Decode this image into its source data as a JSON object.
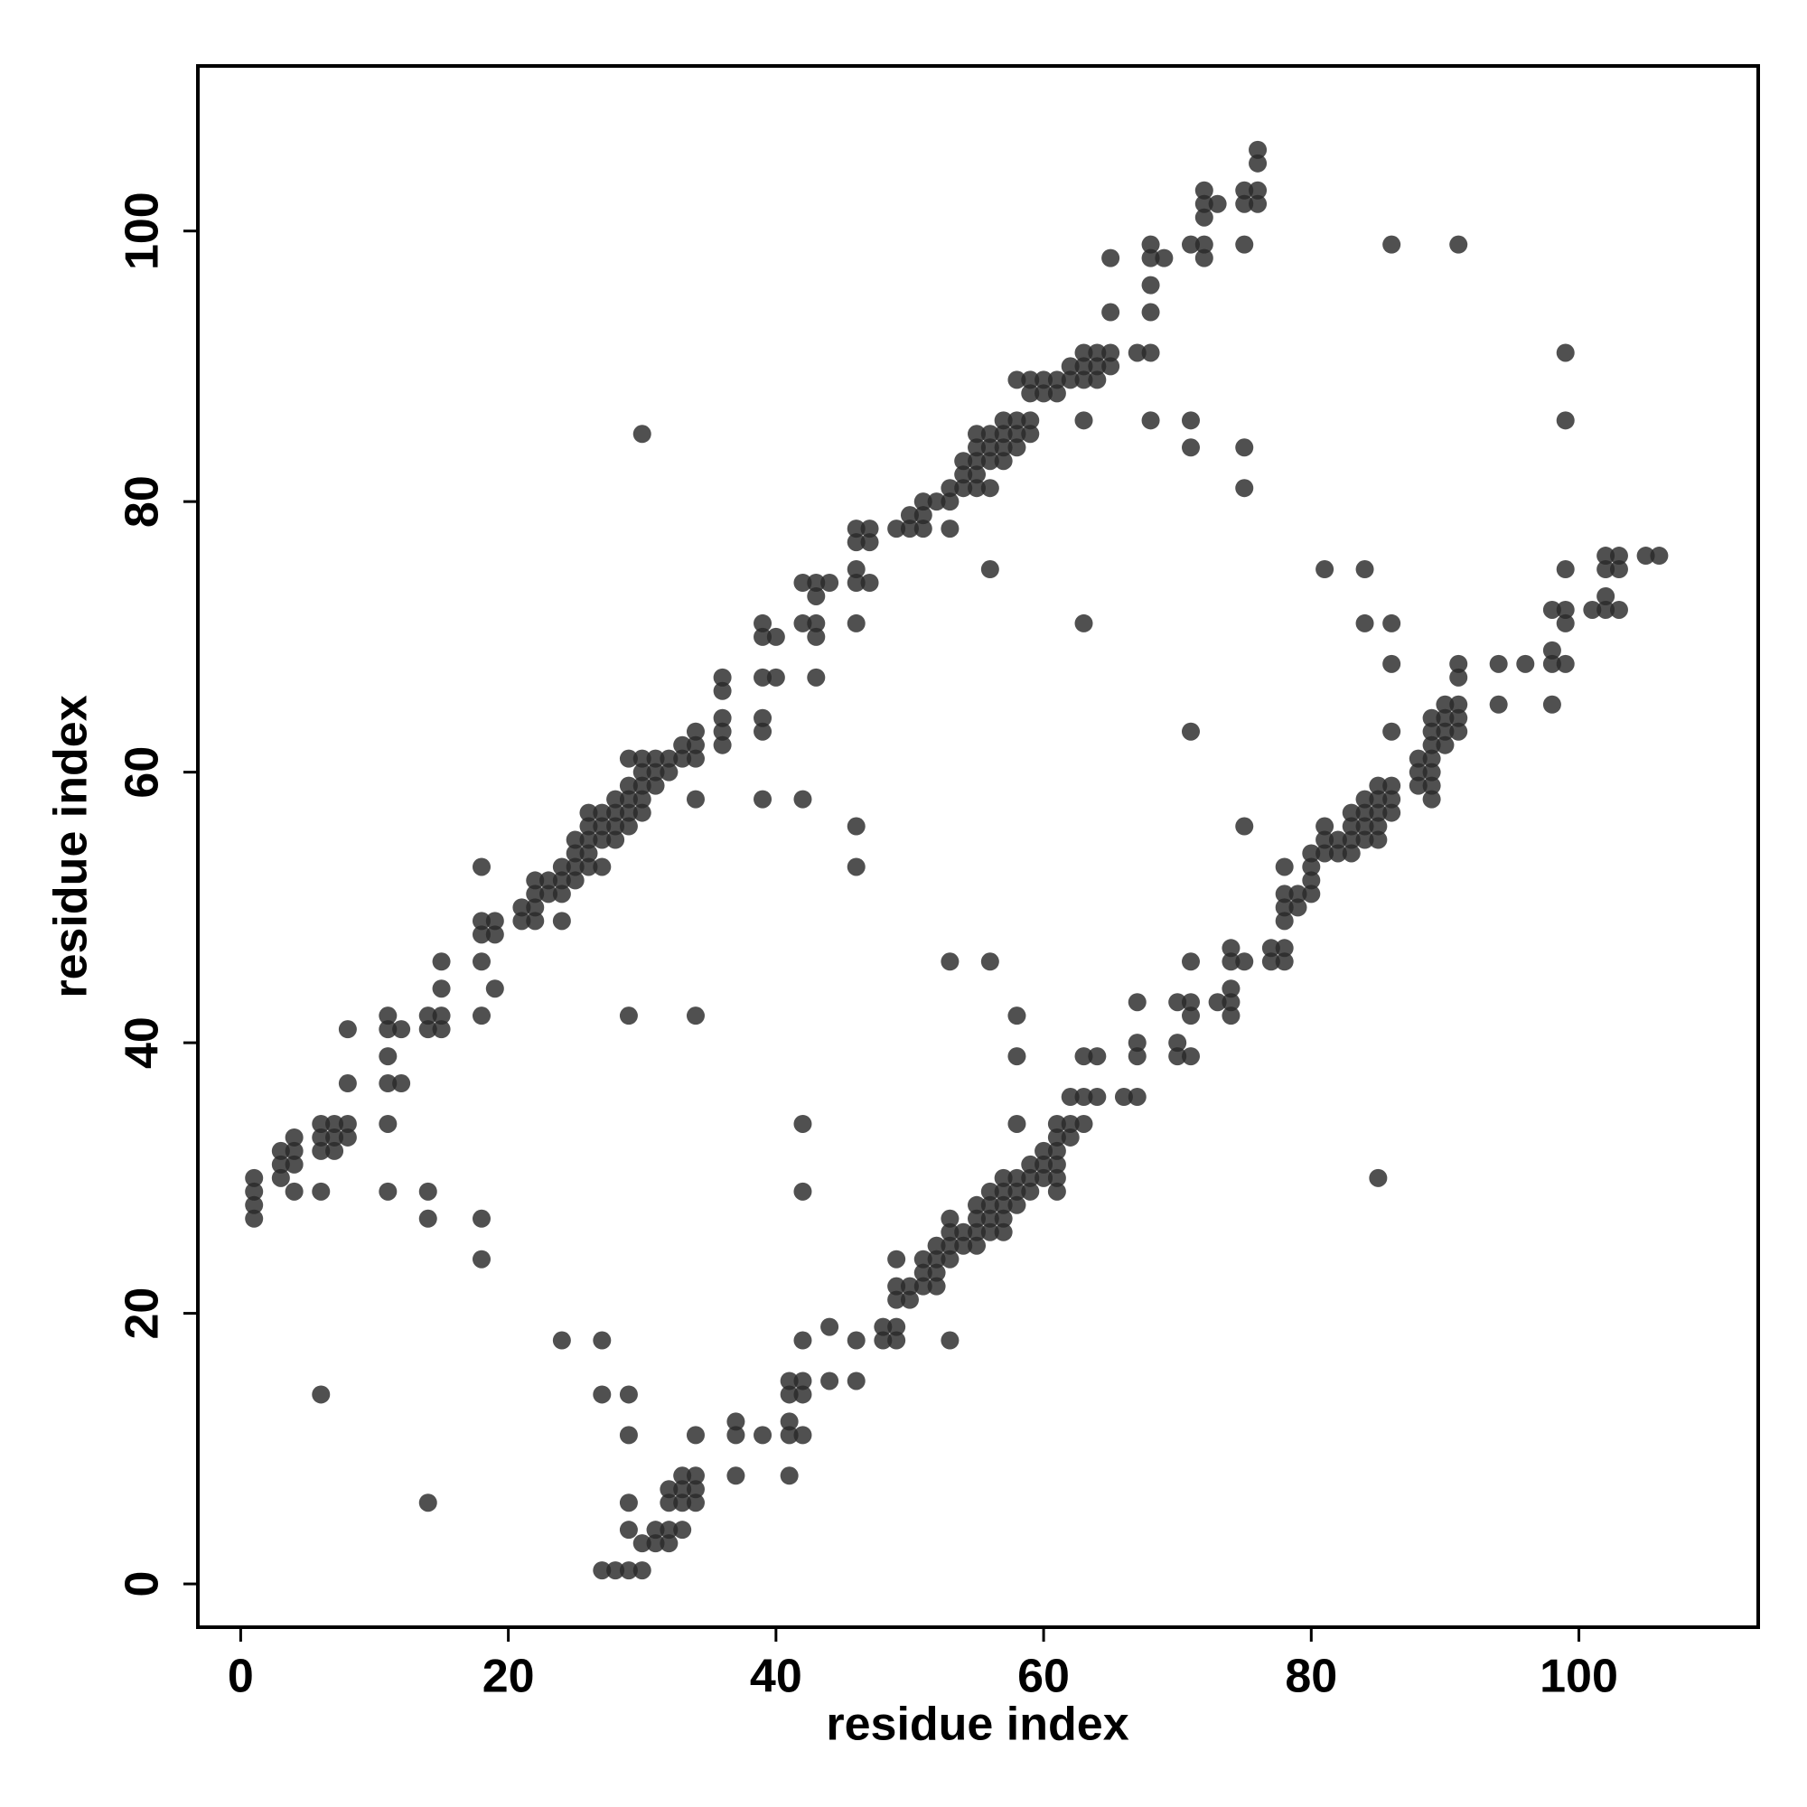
{
  "chart_data": {
    "type": "scatter",
    "xlabel": "residue index",
    "ylabel": "residue index",
    "xlim": [
      -3.2,
      113.4
    ],
    "ylim": [
      -3.2,
      112.2
    ],
    "xticks": [
      0,
      20,
      40,
      60,
      80,
      100
    ],
    "yticks": [
      0,
      20,
      40,
      60,
      80,
      100
    ],
    "grid": false,
    "x": [
      1,
      1,
      1,
      1,
      3,
      3,
      3,
      4,
      4,
      4,
      4,
      6,
      6,
      6,
      6,
      7,
      7,
      7,
      8,
      8,
      8,
      8,
      6,
      11,
      11,
      11,
      11,
      11,
      11,
      12,
      12,
      14,
      14,
      14,
      14,
      14,
      15,
      15,
      15,
      15,
      18,
      18,
      18,
      18,
      18,
      18,
      18,
      19,
      19,
      19,
      21,
      21,
      22,
      22,
      22,
      22,
      23,
      23,
      24,
      24,
      24,
      24,
      24,
      25,
      25,
      25,
      25,
      26,
      26,
      26,
      26,
      26,
      27,
      27,
      27,
      27,
      27,
      27,
      28,
      28,
      28,
      28,
      29,
      29,
      29,
      29,
      29,
      29,
      29,
      29,
      30,
      30,
      30,
      30,
      30,
      30,
      31,
      31,
      31,
      32,
      32,
      33,
      33,
      34,
      34,
      34,
      34,
      34,
      36,
      36,
      36,
      36,
      36,
      39,
      39,
      39,
      39,
      39,
      39,
      40,
      40,
      42,
      42,
      42,
      42,
      42,
      43,
      43,
      43,
      43,
      43,
      44,
      46,
      46,
      46,
      46,
      46,
      46,
      46,
      47,
      47,
      47,
      49,
      50,
      50,
      51,
      51,
      51,
      52,
      53,
      53,
      53,
      53,
      54,
      54,
      54,
      55,
      55,
      55,
      55,
      55,
      56,
      56,
      56,
      56,
      56,
      56,
      57,
      57,
      57,
      57,
      58,
      58,
      58,
      58,
      58,
      58,
      58,
      59,
      59,
      59,
      59,
      60,
      60,
      61,
      61,
      62,
      62,
      63,
      63,
      63,
      63,
      63,
      64,
      64,
      64,
      65,
      65,
      65,
      65,
      67,
      68,
      68,
      68,
      68,
      68,
      68,
      69,
      71,
      71,
      71,
      71,
      72,
      72,
      72,
      72,
      72,
      73,
      75,
      75,
      75,
      75,
      75,
      76,
      76,
      76,
      76,
      27,
      28,
      29,
      30,
      29,
      29,
      30,
      31,
      31,
      32,
      32,
      32,
      32,
      33,
      33,
      33,
      33,
      34,
      34,
      34,
      34,
      37,
      37,
      37,
      39,
      41,
      41,
      41,
      41,
      41,
      42,
      42,
      42,
      42,
      44,
      44,
      46,
      46,
      48,
      48,
      49,
      49,
      49,
      49,
      49,
      50,
      50,
      51,
      51,
      51,
      52,
      52,
      52,
      52,
      53,
      53,
      53,
      53,
      53,
      54,
      54,
      55,
      55,
      55,
      55,
      56,
      56,
      56,
      56,
      57,
      57,
      57,
      57,
      57,
      58,
      58,
      58,
      59,
      59,
      59,
      60,
      60,
      60,
      61,
      61,
      61,
      61,
      61,
      61,
      62,
      62,
      62,
      63,
      63,
      63,
      64,
      64,
      66,
      67,
      67,
      67,
      67,
      70,
      70,
      70,
      71,
      71,
      71,
      71,
      73,
      74,
      74,
      74,
      74,
      74,
      75,
      75,
      77,
      77,
      78,
      78,
      78,
      78,
      78,
      78,
      79,
      79,
      80,
      80,
      80,
      80,
      81,
      81,
      81,
      81,
      82,
      82,
      83,
      83,
      83,
      83,
      84,
      84,
      84,
      84,
      84,
      84,
      85,
      85,
      85,
      85,
      85,
      85,
      86,
      86,
      86,
      86,
      86,
      86,
      86,
      88,
      88,
      88,
      89,
      89,
      89,
      89,
      89,
      89,
      89,
      90,
      90,
      90,
      90,
      91,
      91,
      91,
      91,
      91,
      91,
      94,
      94,
      96,
      98,
      98,
      98,
      98,
      99,
      99,
      99,
      99,
      99,
      99,
      101,
      102,
      102,
      102,
      102,
      103,
      103,
      103,
      105,
      106
    ],
    "series": [
      {
        "color": "#2a2a2a",
        "values": [
          30,
          29,
          28,
          27,
          31,
          30,
          32,
          32,
          33,
          31,
          29,
          34,
          33,
          32,
          29,
          34,
          33,
          32,
          34,
          33,
          41,
          37,
          14,
          42,
          41,
          39,
          37,
          34,
          29,
          41,
          37,
          42,
          41,
          29,
          27,
          6,
          46,
          44,
          42,
          41,
          53,
          49,
          48,
          46,
          42,
          27,
          24,
          49,
          48,
          44,
          50,
          49,
          52,
          51,
          50,
          49,
          52,
          51,
          53,
          52,
          51,
          49,
          18,
          55,
          54,
          53,
          52,
          57,
          56,
          55,
          54,
          53,
          57,
          56,
          55,
          53,
          18,
          14,
          58,
          57,
          56,
          55,
          61,
          59,
          58,
          57,
          56,
          42,
          14,
          11,
          61,
          60,
          59,
          58,
          57,
          85,
          61,
          60,
          59,
          61,
          60,
          62,
          61,
          63,
          62,
          61,
          58,
          42,
          67,
          66,
          64,
          63,
          62,
          71,
          70,
          67,
          64,
          63,
          58,
          70,
          67,
          74,
          71,
          58,
          34,
          29,
          74,
          73,
          71,
          70,
          67,
          74,
          78,
          77,
          75,
          74,
          71,
          56,
          53,
          78,
          77,
          74,
          78,
          79,
          78,
          80,
          79,
          78,
          80,
          81,
          80,
          78,
          46,
          83,
          82,
          81,
          85,
          84,
          83,
          82,
          81,
          85,
          84,
          83,
          81,
          75,
          46,
          86,
          85,
          84,
          83,
          89,
          86,
          85,
          84,
          42,
          39,
          34,
          89,
          88,
          86,
          85,
          89,
          88,
          89,
          88,
          90,
          89,
          91,
          90,
          89,
          86,
          71,
          91,
          90,
          89,
          98,
          94,
          91,
          90,
          91,
          99,
          98,
          96,
          94,
          91,
          86,
          98,
          99,
          86,
          84,
          63,
          103,
          102,
          101,
          99,
          98,
          102,
          103,
          102,
          99,
          84,
          81,
          106,
          105,
          103,
          102,
          1,
          1,
          1,
          1,
          6,
          4,
          3,
          4,
          3,
          7,
          6,
          4,
          3,
          8,
          7,
          6,
          4,
          11,
          8,
          7,
          6,
          12,
          11,
          8,
          11,
          15,
          14,
          12,
          11,
          8,
          18,
          15,
          14,
          11,
          19,
          15,
          18,
          15,
          19,
          18,
          24,
          22,
          21,
          19,
          18,
          22,
          21,
          24,
          23,
          22,
          25,
          24,
          23,
          22,
          27,
          26,
          25,
          24,
          18,
          26,
          25,
          28,
          27,
          26,
          25,
          29,
          28,
          27,
          26,
          30,
          29,
          28,
          27,
          26,
          30,
          29,
          28,
          31,
          30,
          29,
          32,
          31,
          30,
          34,
          33,
          32,
          31,
          30,
          29,
          36,
          34,
          33,
          39,
          36,
          34,
          39,
          36,
          36,
          43,
          40,
          39,
          36,
          43,
          40,
          39,
          46,
          43,
          42,
          39,
          43,
          47,
          46,
          44,
          43,
          42,
          46,
          56,
          47,
          46,
          53,
          51,
          50,
          49,
          47,
          46,
          51,
          50,
          54,
          53,
          52,
          51,
          56,
          55,
          54,
          75,
          55,
          54,
          57,
          56,
          55,
          54,
          58,
          57,
          56,
          55,
          75,
          71,
          59,
          58,
          57,
          56,
          55,
          30,
          59,
          58,
          57,
          71,
          68,
          63,
          99,
          61,
          60,
          59,
          64,
          63,
          62,
          61,
          60,
          59,
          58,
          65,
          64,
          63,
          62,
          68,
          67,
          65,
          64,
          63,
          99,
          68,
          65,
          68,
          72,
          69,
          68,
          65,
          91,
          86,
          75,
          72,
          71,
          68,
          72,
          76,
          75,
          73,
          72,
          76,
          75,
          72,
          76,
          76
        ]
      }
    ]
  }
}
